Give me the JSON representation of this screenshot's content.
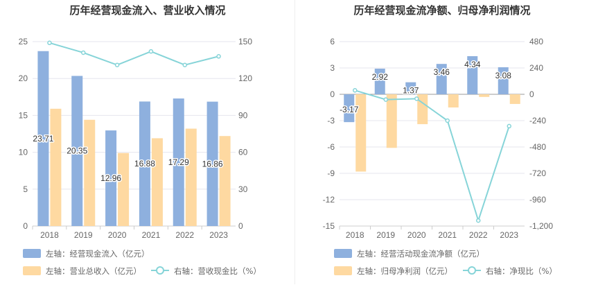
{
  "colors": {
    "bar1": "#8eb0de",
    "bar2": "#fed9a1",
    "line": "#86d4d8",
    "grid": "#e6e6ee",
    "axis": "#cccccc",
    "divider": "#eeeeee"
  },
  "chart_data": [
    {
      "type": "bar",
      "title": "历年经营现金流入、营业收入情况",
      "categories": [
        "2018",
        "2019",
        "2020",
        "2021",
        "2022",
        "2023"
      ],
      "left_axis": {
        "min": 0,
        "max": 25,
        "step": 5,
        "ticks": [
          "0",
          "5",
          "10",
          "15",
          "20",
          "25"
        ]
      },
      "right_axis": {
        "min": 0,
        "max": 150,
        "step": 30,
        "ticks": [
          "0",
          "30",
          "60",
          "90",
          "120",
          "150"
        ]
      },
      "series": [
        {
          "name": "左轴：经营现金流入（亿元）",
          "kind": "bar",
          "axis": "left",
          "values": [
            23.71,
            20.35,
            12.96,
            16.88,
            17.29,
            16.86
          ],
          "labels": [
            "23.71",
            "20.35",
            "12.96",
            "16.88",
            "17.29",
            "16.86"
          ]
        },
        {
          "name": "左轴：营业总收入（亿元）",
          "kind": "bar",
          "axis": "left",
          "values": [
            15.9,
            14.4,
            9.9,
            11.9,
            13.2,
            12.2
          ]
        },
        {
          "name": "右轴：营收现金比（%）",
          "kind": "line",
          "axis": "right",
          "values": [
            149,
            141,
            131,
            142,
            131,
            138
          ]
        }
      ],
      "legend": [
        "左轴：经营现金流入（亿元）",
        "左轴：营业总收入（亿元）",
        "右轴：营收现金比（%）"
      ]
    },
    {
      "type": "bar",
      "title": "历年经营现金流净额、归母净利润情况",
      "categories": [
        "2018",
        "2019",
        "2020",
        "2021",
        "2022",
        "2023"
      ],
      "left_axis": {
        "min": -15,
        "max": 6,
        "step": 3,
        "ticks": [
          "-15",
          "-12",
          "-9",
          "-6",
          "-3",
          "0",
          "3",
          "6"
        ]
      },
      "right_axis": {
        "min": -1200,
        "max": 480,
        "step": 240,
        "ticks": [
          "-1,200",
          "-960",
          "-720",
          "-480",
          "-240",
          "0",
          "240",
          "480"
        ]
      },
      "series": [
        {
          "name": "左轴：经营活动现金流净额（亿元）",
          "kind": "bar",
          "axis": "left",
          "values": [
            -3.17,
            2.92,
            1.37,
            3.46,
            4.34,
            3.08
          ],
          "labels": [
            "-3.17",
            "2.92",
            "1.37",
            "3.46",
            "4.34",
            "3.08"
          ]
        },
        {
          "name": "左轴：归母净利润（亿元）",
          "kind": "bar",
          "axis": "left",
          "values": [
            -8.8,
            -6.1,
            -3.4,
            -1.5,
            -0.3,
            -1.1
          ]
        },
        {
          "name": "右轴：净现比（%）",
          "kind": "line",
          "axis": "right",
          "values": [
            36,
            -48,
            -40,
            -240,
            -1150,
            -290
          ]
        }
      ],
      "legend": [
        "左轴：经营活动现金流净额（亿元）",
        "左轴：归母净利润（亿元）",
        "右轴：净现比（%）"
      ]
    }
  ]
}
